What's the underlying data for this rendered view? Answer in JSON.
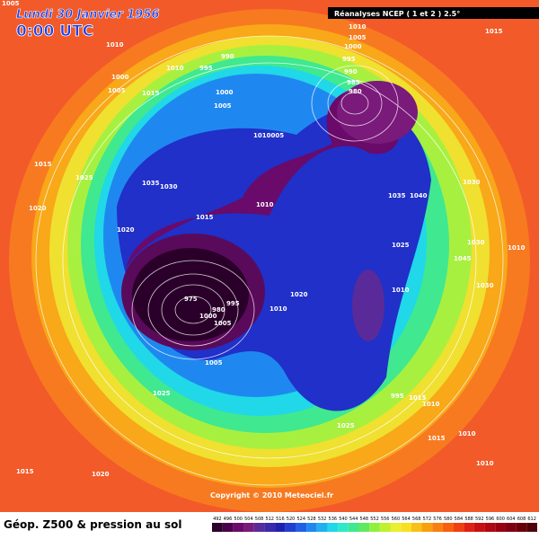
{
  "header": {
    "date": "Lundi 30 Janvier 1956",
    "time": "0:00 UTC",
    "source": "Réanalyses NCEP ( 1 et 2 ) 2.5°"
  },
  "copyright": "Copyright © 2010 Meteociel.fr",
  "footer": {
    "title": "Géop. Z500 & pression au sol"
  },
  "colorbar": {
    "labels": [
      "492",
      "496",
      "500",
      "504",
      "508",
      "512",
      "516",
      "520",
      "524",
      "528",
      "532",
      "536",
      "540",
      "544",
      "548",
      "552",
      "556",
      "560",
      "564",
      "568",
      "572",
      "576",
      "580",
      "584",
      "588",
      "592",
      "596",
      "600",
      "604",
      "608",
      "612"
    ],
    "colors": [
      "#2a002a",
      "#4a004a",
      "#6a0a6a",
      "#7a1a7a",
      "#5a2a9a",
      "#3a2aaa",
      "#2020b0",
      "#1f3fd0",
      "#2060e8",
      "#1f88f0",
      "#20b0f0",
      "#20d8e8",
      "#30e8c8",
      "#40e890",
      "#60e860",
      "#90f040",
      "#c0f030",
      "#e8f030",
      "#f8e020",
      "#f8c018",
      "#f8a010",
      "#f88010",
      "#f86010",
      "#f04010",
      "#e02010",
      "#c81010",
      "#b00810",
      "#980010",
      "#800010",
      "#680008",
      "#500008"
    ]
  },
  "isobar_labels": [
    "1005",
    "1010",
    "990",
    "995",
    "1010",
    "1000",
    "1005",
    "1015",
    "1000",
    "1005",
    "1010",
    "1005",
    "1000",
    "995",
    "990",
    "985",
    "980",
    "1015",
    "1010005",
    "1015",
    "1025",
    "1035",
    "1030",
    "1015",
    "1020",
    "1010",
    "1035",
    "1040",
    "1030",
    "1025",
    "1030",
    "1010",
    "1020",
    "1030",
    "1010",
    "1045",
    "1020",
    "1010",
    "975",
    "980",
    "995",
    "1000",
    "1005",
    "1025",
    "995",
    "1015",
    "1010",
    "1025",
    "1015",
    "1010",
    "1015",
    "1020",
    "1010",
    "1005"
  ]
}
